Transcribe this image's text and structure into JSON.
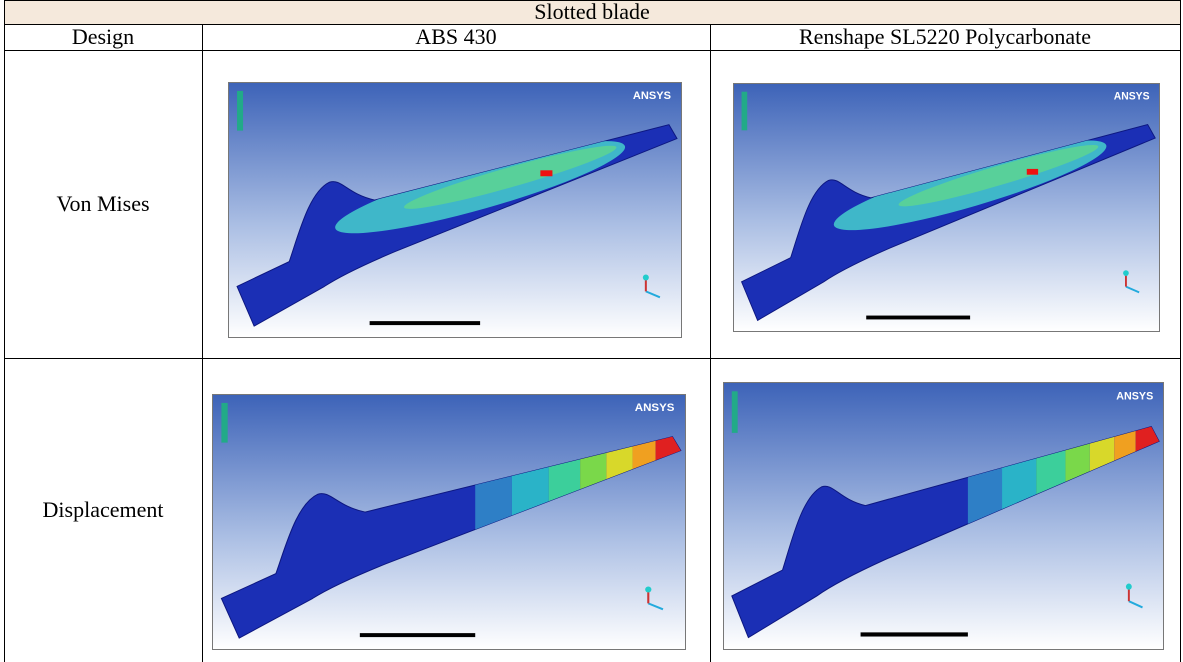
{
  "table": {
    "title": "Slotted blade",
    "header": [
      "Design",
      "ABS 430",
      "Renshape SL5220 Polycarbonate"
    ],
    "rows": [
      [
        "Von Mises"
      ],
      [
        "Displacement"
      ]
    ]
  },
  "figure_logo": "ANSYS"
}
